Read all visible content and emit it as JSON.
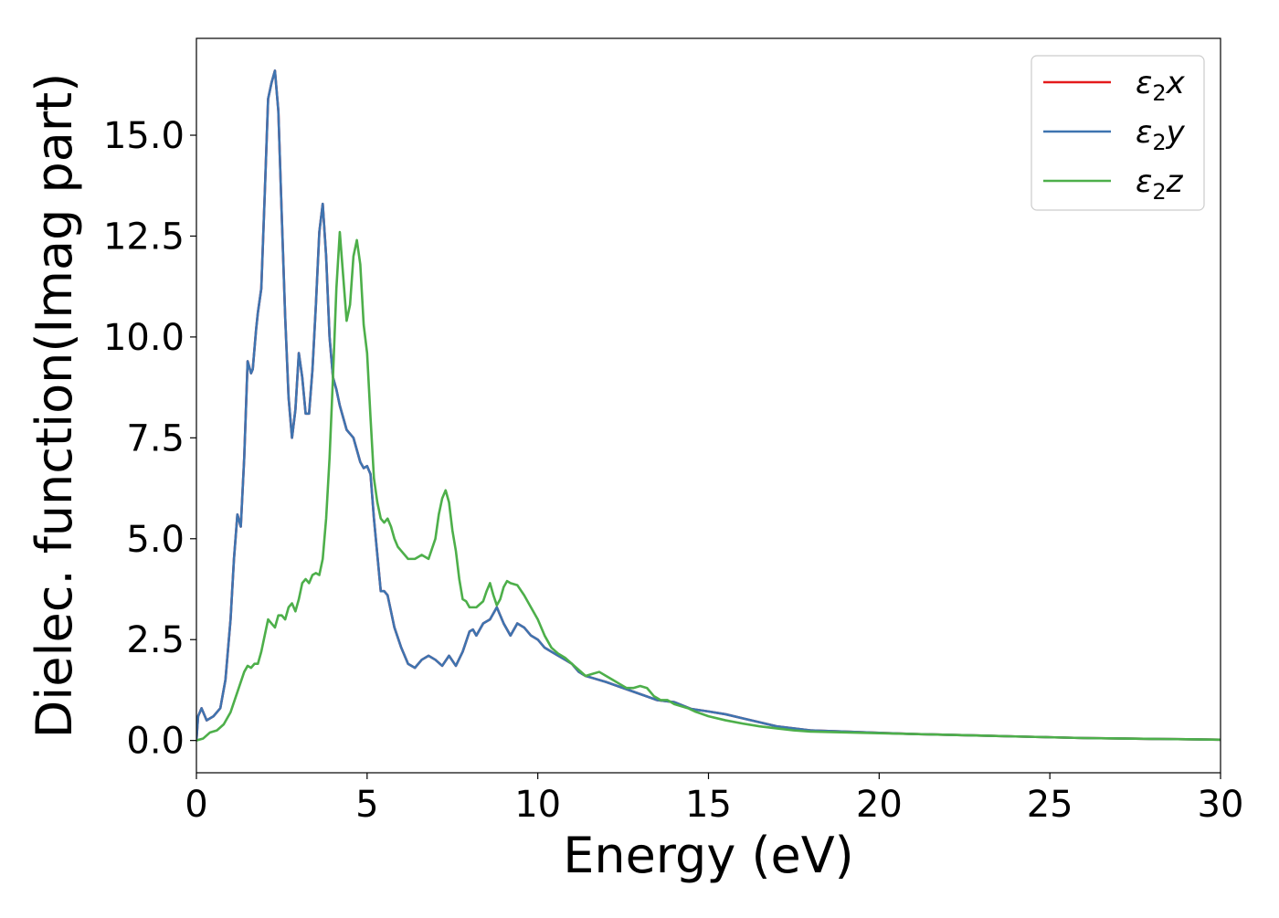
{
  "chart_data": {
    "type": "line",
    "title": "",
    "xlabel": "Energy (eV)",
    "ylabel": "Dielec. function(Imag part)",
    "xlim": [
      0,
      30
    ],
    "ylim": [
      -0.8,
      17.4
    ],
    "grid": false,
    "legend_position": "top-right",
    "x_ticks": [
      0,
      5,
      10,
      15,
      20,
      25,
      30
    ],
    "x_tick_labels": [
      "0",
      "5",
      "10",
      "15",
      "20",
      "25",
      "30"
    ],
    "y_ticks": [
      0.0,
      2.5,
      5.0,
      7.5,
      10.0,
      12.5,
      15.0
    ],
    "y_tick_labels": [
      "0.0",
      "2.5",
      "5.0",
      "7.5",
      "10.0",
      "12.5",
      "15.0"
    ],
    "series": [
      {
        "name": "ε2x",
        "legend_parts": [
          "ε",
          "2",
          "x"
        ],
        "color": "#e41a1c",
        "x": [
          0,
          0.05,
          0.15,
          0.3,
          0.5,
          0.7,
          0.85,
          1.0,
          1.1,
          1.2,
          1.3,
          1.4,
          1.5,
          1.6,
          1.65,
          1.75,
          1.8,
          1.9,
          2.0,
          2.1,
          2.2,
          2.3,
          2.4,
          2.5,
          2.6,
          2.7,
          2.8,
          2.9,
          3.0,
          3.1,
          3.2,
          3.3,
          3.4,
          3.5,
          3.6,
          3.7,
          3.8,
          3.9,
          4.0,
          4.1,
          4.2,
          4.3,
          4.4,
          4.5,
          4.6,
          4.7,
          4.8,
          4.9,
          5.0,
          5.1,
          5.2,
          5.3,
          5.4,
          5.5,
          5.6,
          5.8,
          6.0,
          6.2,
          6.4,
          6.6,
          6.8,
          7.0,
          7.2,
          7.4,
          7.6,
          7.8,
          8.0,
          8.1,
          8.2,
          8.4,
          8.6,
          8.8,
          9.0,
          9.2,
          9.4,
          9.6,
          9.8,
          10.0,
          10.2,
          10.4,
          10.6,
          10.8,
          11.0,
          11.2,
          11.4,
          11.6,
          12.0,
          12.5,
          13.0,
          13.5,
          14.0,
          14.5,
          15.0,
          15.5,
          16.0,
          16.5,
          17.0,
          17.5,
          18.0,
          19.0,
          20.0,
          21.0,
          22.0,
          23.0,
          24.0,
          25.0,
          26.0,
          27.0,
          28.0,
          29.0,
          30.0
        ],
        "y": [
          0,
          0.6,
          0.8,
          0.5,
          0.6,
          0.8,
          1.5,
          3.0,
          4.5,
          5.6,
          5.3,
          7.0,
          9.4,
          9.1,
          9.2,
          10.2,
          10.6,
          11.2,
          13.5,
          15.9,
          16.3,
          16.6,
          15.6,
          13.0,
          10.5,
          8.5,
          7.5,
          8.2,
          9.6,
          9.0,
          8.1,
          8.1,
          9.2,
          10.8,
          12.6,
          13.3,
          12.0,
          10.0,
          9.0,
          8.7,
          8.3,
          8.0,
          7.7,
          7.6,
          7.5,
          7.2,
          6.9,
          6.75,
          6.8,
          6.6,
          5.5,
          4.6,
          3.7,
          3.7,
          3.6,
          2.8,
          2.3,
          1.9,
          1.8,
          2.0,
          2.1,
          2.0,
          1.85,
          2.1,
          1.85,
          2.2,
          2.7,
          2.75,
          2.6,
          2.9,
          3.0,
          3.3,
          2.9,
          2.6,
          2.9,
          2.8,
          2.6,
          2.5,
          2.3,
          2.2,
          2.1,
          2.0,
          1.9,
          1.7,
          1.6,
          1.55,
          1.45,
          1.3,
          1.15,
          1.0,
          0.95,
          0.78,
          0.72,
          0.65,
          0.55,
          0.45,
          0.35,
          0.3,
          0.25,
          0.22,
          0.19,
          0.16,
          0.14,
          0.12,
          0.1,
          0.08,
          0.06,
          0.05,
          0.04,
          0.03,
          0.02
        ]
      },
      {
        "name": "ε2y",
        "legend_parts": [
          "ε",
          "2",
          "y"
        ],
        "color": "#3e74b0",
        "x": [
          0,
          0.05,
          0.15,
          0.3,
          0.5,
          0.7,
          0.85,
          1.0,
          1.1,
          1.2,
          1.3,
          1.4,
          1.5,
          1.6,
          1.65,
          1.75,
          1.8,
          1.9,
          2.0,
          2.1,
          2.2,
          2.3,
          2.4,
          2.5,
          2.6,
          2.7,
          2.8,
          2.9,
          3.0,
          3.1,
          3.2,
          3.3,
          3.4,
          3.5,
          3.6,
          3.7,
          3.8,
          3.9,
          4.0,
          4.1,
          4.2,
          4.3,
          4.4,
          4.5,
          4.6,
          4.7,
          4.8,
          4.9,
          5.0,
          5.1,
          5.2,
          5.3,
          5.4,
          5.5,
          5.6,
          5.8,
          6.0,
          6.2,
          6.4,
          6.6,
          6.8,
          7.0,
          7.2,
          7.4,
          7.6,
          7.8,
          8.0,
          8.1,
          8.2,
          8.4,
          8.6,
          8.8,
          9.0,
          9.2,
          9.4,
          9.6,
          9.8,
          10.0,
          10.2,
          10.4,
          10.6,
          10.8,
          11.0,
          11.2,
          11.4,
          11.6,
          12.0,
          12.5,
          13.0,
          13.5,
          14.0,
          14.5,
          15.0,
          15.5,
          16.0,
          16.5,
          17.0,
          17.5,
          18.0,
          19.0,
          20.0,
          21.0,
          22.0,
          23.0,
          24.0,
          25.0,
          26.0,
          27.0,
          28.0,
          29.0,
          30.0
        ],
        "y": [
          0,
          0.6,
          0.8,
          0.5,
          0.6,
          0.8,
          1.5,
          3.0,
          4.5,
          5.6,
          5.3,
          7.0,
          9.4,
          9.1,
          9.2,
          10.2,
          10.6,
          11.2,
          13.5,
          15.9,
          16.3,
          16.6,
          15.6,
          13.0,
          10.5,
          8.5,
          7.5,
          8.2,
          9.6,
          9.0,
          8.1,
          8.1,
          9.2,
          10.8,
          12.6,
          13.3,
          12.0,
          10.0,
          9.0,
          8.7,
          8.3,
          8.0,
          7.7,
          7.6,
          7.5,
          7.2,
          6.9,
          6.75,
          6.8,
          6.6,
          5.5,
          4.6,
          3.7,
          3.7,
          3.6,
          2.8,
          2.3,
          1.9,
          1.8,
          2.0,
          2.1,
          2.0,
          1.85,
          2.1,
          1.85,
          2.2,
          2.7,
          2.75,
          2.6,
          2.9,
          3.0,
          3.3,
          2.9,
          2.6,
          2.9,
          2.8,
          2.6,
          2.5,
          2.3,
          2.2,
          2.1,
          2.0,
          1.9,
          1.7,
          1.6,
          1.55,
          1.45,
          1.3,
          1.15,
          1.0,
          0.95,
          0.78,
          0.72,
          0.65,
          0.55,
          0.45,
          0.35,
          0.3,
          0.25,
          0.22,
          0.19,
          0.16,
          0.14,
          0.12,
          0.1,
          0.08,
          0.06,
          0.05,
          0.04,
          0.03,
          0.02
        ]
      },
      {
        "name": "ε2z",
        "legend_parts": [
          "ε",
          "2",
          "z"
        ],
        "color": "#4daf4a",
        "x": [
          0,
          0.2,
          0.4,
          0.6,
          0.8,
          1.0,
          1.2,
          1.4,
          1.5,
          1.6,
          1.7,
          1.8,
          1.9,
          2.0,
          2.1,
          2.2,
          2.3,
          2.4,
          2.5,
          2.6,
          2.7,
          2.8,
          2.9,
          3.0,
          3.1,
          3.2,
          3.3,
          3.4,
          3.5,
          3.6,
          3.7,
          3.8,
          3.9,
          4.0,
          4.1,
          4.2,
          4.3,
          4.4,
          4.5,
          4.6,
          4.7,
          4.8,
          4.9,
          5.0,
          5.1,
          5.2,
          5.3,
          5.4,
          5.5,
          5.6,
          5.7,
          5.8,
          5.9,
          6.0,
          6.2,
          6.4,
          6.6,
          6.8,
          7.0,
          7.1,
          7.2,
          7.3,
          7.4,
          7.5,
          7.6,
          7.7,
          7.8,
          7.9,
          8.0,
          8.2,
          8.4,
          8.5,
          8.6,
          8.7,
          8.8,
          8.9,
          9.0,
          9.1,
          9.2,
          9.4,
          9.6,
          9.8,
          10.0,
          10.2,
          10.4,
          10.6,
          10.8,
          11.0,
          11.2,
          11.4,
          11.6,
          11.8,
          12.0,
          12.2,
          12.4,
          12.6,
          12.8,
          13.0,
          13.2,
          13.4,
          13.6,
          13.8,
          14.0,
          14.2,
          14.4,
          14.6,
          15.0,
          15.5,
          16.0,
          16.5,
          17.0,
          17.5,
          18.0,
          19.0,
          20.0,
          21.0,
          22.0,
          23.0,
          24.0,
          25.0,
          26.0,
          27.0,
          28.0,
          29.0,
          30.0
        ],
        "y": [
          0,
          0.05,
          0.2,
          0.25,
          0.4,
          0.7,
          1.2,
          1.7,
          1.85,
          1.8,
          1.9,
          1.9,
          2.2,
          2.6,
          3.0,
          2.9,
          2.8,
          3.1,
          3.1,
          3.0,
          3.3,
          3.4,
          3.2,
          3.5,
          3.9,
          4.0,
          3.9,
          4.1,
          4.15,
          4.1,
          4.5,
          5.5,
          7.0,
          9.0,
          11.2,
          12.6,
          11.5,
          10.4,
          10.8,
          12.0,
          12.4,
          11.8,
          10.3,
          9.6,
          8.0,
          6.5,
          5.9,
          5.5,
          5.4,
          5.5,
          5.3,
          5.0,
          4.8,
          4.7,
          4.5,
          4.5,
          4.6,
          4.5,
          5.0,
          5.6,
          6.0,
          6.2,
          5.9,
          5.2,
          4.7,
          4.0,
          3.5,
          3.45,
          3.3,
          3.3,
          3.45,
          3.7,
          3.9,
          3.6,
          3.35,
          3.5,
          3.8,
          3.95,
          3.9,
          3.85,
          3.6,
          3.3,
          3.0,
          2.6,
          2.3,
          2.15,
          2.05,
          1.9,
          1.75,
          1.6,
          1.65,
          1.7,
          1.6,
          1.5,
          1.4,
          1.3,
          1.3,
          1.35,
          1.3,
          1.1,
          1.0,
          1.0,
          0.9,
          0.85,
          0.8,
          0.72,
          0.6,
          0.5,
          0.42,
          0.35,
          0.3,
          0.25,
          0.22,
          0.2,
          0.18,
          0.16,
          0.14,
          0.12,
          0.1,
          0.08,
          0.06,
          0.05,
          0.04,
          0.03,
          0.02
        ]
      }
    ]
  }
}
